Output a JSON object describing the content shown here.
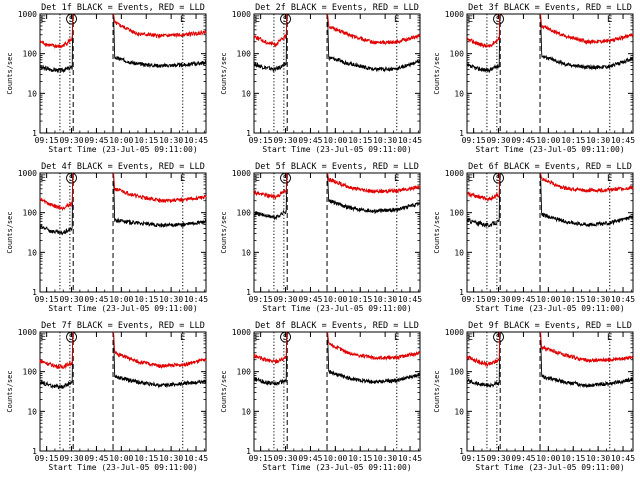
{
  "colors": {
    "events": "#000000",
    "lld": "#e00000",
    "axis": "#000000",
    "background": "#ffffff"
  },
  "chart_data": [
    {
      "type": "line",
      "title": "Det 1f BLACK = Events, RED = LLD",
      "xlabel": "Start Time (23-Jul-05 09:11:00)",
      "ylabel": "Counts/sec",
      "x_ticks": [
        "09:15",
        "09:30",
        "09:45",
        "10:00",
        "10:15",
        "10:30",
        "10:45"
      ],
      "x_range": [
        "09:11",
        "10:51"
      ],
      "y_scale": "log",
      "ylim": [
        1,
        1000
      ],
      "y_ticks": [
        "1",
        "10",
        "100",
        "1000"
      ],
      "markers": [
        {
          "label": "E",
          "time": "09:13"
        },
        {
          "label": "S",
          "time": "09:30"
        },
        {
          "label": "E",
          "time": "10:37"
        }
      ],
      "dotted_lines": [
        "09:23",
        "09:29",
        "10:37"
      ],
      "dashed_lines": [
        "09:31",
        "09:55"
      ],
      "series": [
        {
          "name": "Events",
          "color": "#000000",
          "pre": [
            45,
            40,
            38,
            45
          ],
          "post": [
            80,
            55,
            50,
            52,
            60
          ]
        },
        {
          "name": "LLD",
          "color": "#e00000",
          "pre": [
            200,
            160,
            150,
            240
          ],
          "post": [
            600,
            320,
            280,
            300,
            350
          ]
        }
      ]
    },
    {
      "type": "line",
      "title": "Det 2f BLACK = Events, RED = LLD",
      "xlabel": "Start Time (23-Jul-05 09:11:00)",
      "ylabel": "Counts/sec",
      "x_ticks": [
        "09:15",
        "09:30",
        "09:45",
        "10:00",
        "10:15",
        "10:30",
        "10:45"
      ],
      "x_range": [
        "09:11",
        "10:51"
      ],
      "y_scale": "log",
      "ylim": [
        1,
        1000
      ],
      "y_ticks": [
        "1",
        "10",
        "100",
        "1000"
      ],
      "markers": [
        {
          "label": "E",
          "time": "09:13"
        },
        {
          "label": "S",
          "time": "09:30"
        },
        {
          "label": "E",
          "time": "10:37"
        }
      ],
      "dotted_lines": [
        "09:23",
        "09:29",
        "10:37"
      ],
      "dashed_lines": [
        "09:31",
        "09:55"
      ],
      "series": [
        {
          "name": "Events",
          "color": "#000000",
          "pre": [
            55,
            45,
            40,
            55
          ],
          "post": [
            80,
            55,
            40,
            42,
            65
          ]
        },
        {
          "name": "LLD",
          "color": "#e00000",
          "pre": [
            280,
            200,
            170,
            280
          ],
          "post": [
            500,
            280,
            190,
            200,
            280
          ]
        }
      ]
    },
    {
      "type": "line",
      "title": "Det 3f BLACK = Events, RED = LLD",
      "xlabel": "Start Time (23-Jul-05 09:11:00)",
      "ylabel": "Counts/sec",
      "x_ticks": [
        "09:15",
        "09:30",
        "09:45",
        "10:00",
        "10:15",
        "10:30",
        "10:45"
      ],
      "x_range": [
        "09:11",
        "10:51"
      ],
      "y_scale": "log",
      "ylim": [
        1,
        1000
      ],
      "y_ticks": [
        "1",
        "10",
        "100",
        "1000"
      ],
      "markers": [
        {
          "label": "E",
          "time": "09:13"
        },
        {
          "label": "S",
          "time": "09:30"
        },
        {
          "label": "E",
          "time": "10:37"
        }
      ],
      "dotted_lines": [
        "09:23",
        "09:29",
        "10:37"
      ],
      "dashed_lines": [
        "09:31",
        "09:55"
      ],
      "series": [
        {
          "name": "Events",
          "color": "#000000",
          "pre": [
            50,
            42,
            38,
            50
          ],
          "post": [
            90,
            55,
            45,
            48,
            75
          ]
        },
        {
          "name": "LLD",
          "color": "#e00000",
          "pre": [
            230,
            180,
            150,
            240
          ],
          "post": [
            500,
            280,
            200,
            210,
            300
          ]
        }
      ]
    },
    {
      "type": "line",
      "title": "Det 4f BLACK = Events, RED = LLD",
      "xlabel": "Start Time (23-Jul-05 09:11:00)",
      "ylabel": "Counts/sec",
      "x_ticks": [
        "09:15",
        "09:30",
        "09:45",
        "10:00",
        "10:15",
        "10:30",
        "10:45"
      ],
      "x_range": [
        "09:11",
        "10:51"
      ],
      "y_scale": "log",
      "ylim": [
        1,
        1000
      ],
      "y_ticks": [
        "1",
        "10",
        "100",
        "1000"
      ],
      "markers": [
        {
          "label": "E",
          "time": "09:13"
        },
        {
          "label": "S",
          "time": "09:30"
        },
        {
          "label": "E",
          "time": "10:37"
        }
      ],
      "dotted_lines": [
        "09:23",
        "09:29",
        "10:37"
      ],
      "dashed_lines": [
        "09:31",
        "09:55"
      ],
      "series": [
        {
          "name": "Events",
          "color": "#000000",
          "pre": [
            45,
            35,
            30,
            40
          ],
          "post": [
            65,
            55,
            48,
            50,
            60
          ]
        },
        {
          "name": "LLD",
          "color": "#e00000",
          "pre": [
            220,
            160,
            130,
            170
          ],
          "post": [
            400,
            260,
            200,
            210,
            250
          ]
        }
      ]
    },
    {
      "type": "line",
      "title": "Det 5f BLACK = Events, RED = LLD",
      "xlabel": "Start Time (23-Jul-05 09:11:00)",
      "ylabel": "Counts/sec",
      "x_ticks": [
        "09:15",
        "09:30",
        "09:45",
        "10:00",
        "10:15",
        "10:30",
        "10:45"
      ],
      "x_range": [
        "09:11",
        "10:51"
      ],
      "y_scale": "log",
      "ylim": [
        1,
        1000
      ],
      "y_ticks": [
        "1",
        "10",
        "100",
        "1000"
      ],
      "markers": [
        {
          "label": "E",
          "time": "09:13"
        },
        {
          "label": "S",
          "time": "09:30"
        },
        {
          "label": "E",
          "time": "10:37"
        }
      ],
      "dotted_lines": [
        "09:23",
        "09:29",
        "10:37"
      ],
      "dashed_lines": [
        "09:31",
        "09:55"
      ],
      "series": [
        {
          "name": "Events",
          "color": "#000000",
          "pre": [
            100,
            85,
            75,
            110
          ],
          "post": [
            200,
            130,
            110,
            120,
            170
          ]
        },
        {
          "name": "LLD",
          "color": "#e00000",
          "pre": [
            330,
            280,
            250,
            360
          ],
          "post": [
            700,
            420,
            340,
            360,
            450
          ]
        }
      ]
    },
    {
      "type": "line",
      "title": "Det 6f BLACK = Events, RED = LLD",
      "xlabel": "Start Time (23-Jul-05 09:11:00)",
      "ylabel": "Counts/sec",
      "x_ticks": [
        "09:15",
        "09:30",
        "09:45",
        "10:00",
        "10:15",
        "10:30",
        "10:45"
      ],
      "x_range": [
        "09:11",
        "10:51"
      ],
      "y_scale": "log",
      "ylim": [
        1,
        1000
      ],
      "y_ticks": [
        "1",
        "10",
        "100",
        "1000"
      ],
      "markers": [
        {
          "label": "E",
          "time": "09:13"
        },
        {
          "label": "S",
          "time": "09:30"
        },
        {
          "label": "E",
          "time": "10:37"
        }
      ],
      "dotted_lines": [
        "09:23",
        "09:29",
        "10:37"
      ],
      "dashed_lines": [
        "09:31",
        "09:55"
      ],
      "series": [
        {
          "name": "Events",
          "color": "#000000",
          "pre": [
            65,
            55,
            48,
            60
          ],
          "post": [
            90,
            60,
            50,
            55,
            80
          ]
        },
        {
          "name": "LLD",
          "color": "#e00000",
          "pre": [
            300,
            260,
            220,
            280
          ],
          "post": [
            700,
            420,
            360,
            380,
            430
          ]
        }
      ]
    },
    {
      "type": "line",
      "title": "Det 7f BLACK = Events, RED = LLD",
      "xlabel": "Start Time (23-Jul-05 09:11:00)",
      "ylabel": "Counts/sec",
      "x_ticks": [
        "09:15",
        "09:30",
        "09:45",
        "10:00",
        "10:15",
        "10:30",
        "10:45"
      ],
      "x_range": [
        "09:11",
        "10:51"
      ],
      "y_scale": "log",
      "ylim": [
        1,
        1000
      ],
      "y_ticks": [
        "1",
        "10",
        "100",
        "1000"
      ],
      "markers": [
        {
          "label": "E",
          "time": "09:13"
        },
        {
          "label": "S",
          "time": "09:30"
        },
        {
          "label": "E",
          "time": "10:37"
        }
      ],
      "dotted_lines": [
        "09:23",
        "09:29",
        "10:37"
      ],
      "dashed_lines": [
        "09:31",
        "09:55"
      ],
      "series": [
        {
          "name": "Events",
          "color": "#000000",
          "pre": [
            55,
            45,
            40,
            55
          ],
          "post": [
            75,
            55,
            45,
            50,
            58
          ]
        },
        {
          "name": "LLD",
          "color": "#e00000",
          "pre": [
            190,
            150,
            130,
            170
          ],
          "post": [
            300,
            180,
            140,
            150,
            200
          ]
        }
      ]
    },
    {
      "type": "line",
      "title": "Det 8f BLACK = Events, RED = LLD",
      "xlabel": "Start Time (23-Jul-05 09:11:00)",
      "ylabel": "Counts/sec",
      "x_ticks": [
        "09:15",
        "09:30",
        "09:45",
        "10:00",
        "10:15",
        "10:30",
        "10:45"
      ],
      "x_range": [
        "09:11",
        "10:51"
      ],
      "y_scale": "log",
      "ylim": [
        1,
        1000
      ],
      "y_ticks": [
        "1",
        "10",
        "100",
        "1000"
      ],
      "markers": [
        {
          "label": "E",
          "time": "09:13"
        },
        {
          "label": "S",
          "time": "09:30"
        },
        {
          "label": "E",
          "time": "10:37"
        }
      ],
      "dotted_lines": [
        "09:23",
        "09:29",
        "10:37"
      ],
      "dashed_lines": [
        "09:31",
        "09:55"
      ],
      "series": [
        {
          "name": "Events",
          "color": "#000000",
          "pre": [
            65,
            55,
            50,
            60
          ],
          "post": [
            100,
            65,
            55,
            60,
            85
          ]
        },
        {
          "name": "LLD",
          "color": "#e00000",
          "pre": [
            250,
            200,
            180,
            230
          ],
          "post": [
            500,
            280,
            220,
            230,
            300
          ]
        }
      ]
    },
    {
      "type": "line",
      "title": "Det 9f BLACK = Events, RED = LLD",
      "xlabel": "Start Time (23-Jul-05 09:11:00)",
      "ylabel": "Counts/sec",
      "x_ticks": [
        "09:15",
        "09:30",
        "09:45",
        "10:00",
        "10:15",
        "10:30",
        "10:45"
      ],
      "x_range": [
        "09:11",
        "10:51"
      ],
      "y_scale": "log",
      "ylim": [
        1,
        1000
      ],
      "y_ticks": [
        "1",
        "10",
        "100",
        "1000"
      ],
      "markers": [
        {
          "label": "E",
          "time": "09:13"
        },
        {
          "label": "S",
          "time": "09:30"
        },
        {
          "label": "E",
          "time": "10:37"
        }
      ],
      "dotted_lines": [
        "09:23",
        "09:29",
        "10:37"
      ],
      "dashed_lines": [
        "09:31",
        "09:55"
      ],
      "series": [
        {
          "name": "Events",
          "color": "#000000",
          "pre": [
            60,
            50,
            45,
            50
          ],
          "post": [
            75,
            55,
            45,
            50,
            65
          ]
        },
        {
          "name": "LLD",
          "color": "#e00000",
          "pre": [
            240,
            180,
            150,
            200
          ],
          "post": [
            420,
            260,
            190,
            200,
            230
          ]
        }
      ]
    }
  ]
}
